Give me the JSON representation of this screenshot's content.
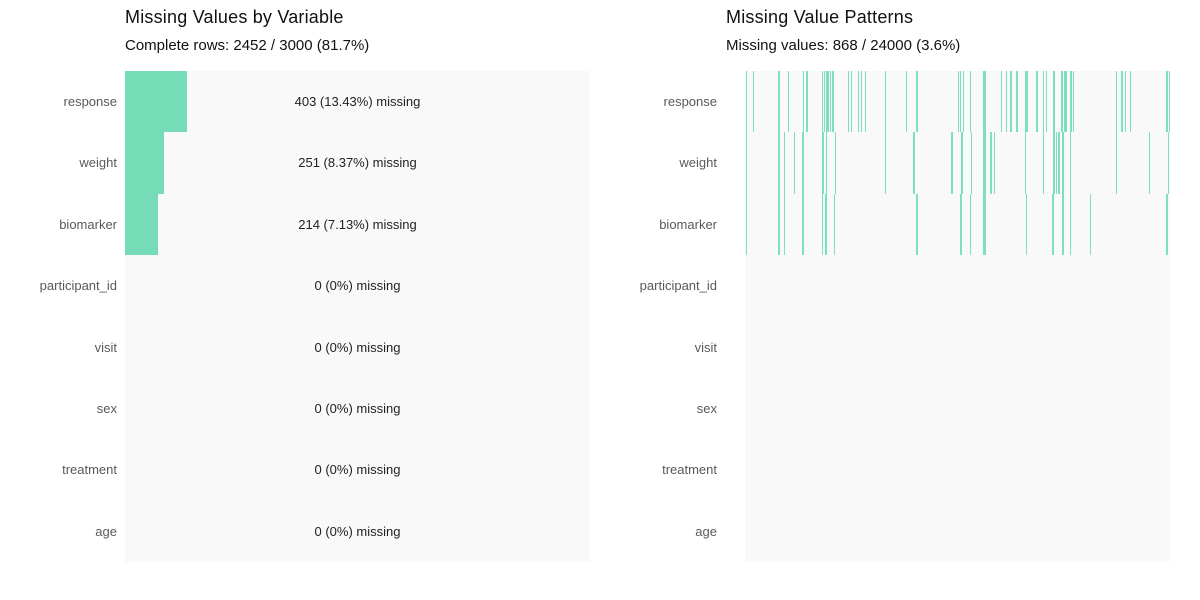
{
  "left_panel": {
    "title": "Missing Values by Variable",
    "subtitle": "Complete rows: 2452 / 3000 (81.7%)"
  },
  "right_panel": {
    "title": "Missing Value Patterns",
    "subtitle": "Missing values: 868 / 24000 (3.6%)"
  },
  "colors": {
    "accent_green": "#76dcb8",
    "pattern_line_green": "#7cdfc0",
    "panel_background": "#f9f9f9",
    "row_label_text": "#595959",
    "value_text": "#222222",
    "title_text": "#111111"
  },
  "chart_data": [
    {
      "type": "bar",
      "orientation": "horizontal",
      "title": "Missing Values by Variable",
      "subtitle": "Complete rows: 2452 / 3000 (81.7%)",
      "categories": [
        "response",
        "weight",
        "biomarker",
        "participant_id",
        "visit",
        "sex",
        "treatment",
        "age"
      ],
      "values": [
        403,
        251,
        214,
        0,
        0,
        0,
        0,
        0
      ],
      "value_labels": [
        "403 (13.43%) missing",
        "251 (8.37%) missing",
        "214 (7.13%) missing",
        "0 (0%) missing",
        "0 (0%) missing",
        "0 (0%) missing",
        "0 (0%) missing",
        "0 (0%) missing"
      ],
      "xlim": [
        0,
        3000
      ],
      "total_rows": 3000,
      "complete_rows": 2452,
      "complete_pct": 81.7,
      "grid": false,
      "legend": false
    },
    {
      "type": "heatmap",
      "title": "Missing Value Patterns",
      "subtitle": "Missing values: 868 / 24000 (3.6%)",
      "categories": [
        "response",
        "weight",
        "biomarker",
        "participant_id",
        "visit",
        "sex",
        "treatment",
        "age"
      ],
      "missing_counts": [
        403,
        251,
        214,
        0,
        0,
        0,
        0,
        0
      ],
      "total_missing": 868,
      "total_cells": 24000,
      "missing_pct": 3.6,
      "grid": false,
      "legend": false,
      "line_positions_frac": {
        "response": [
          [
            0.002,
            1.4
          ],
          [
            0.019,
            1.4
          ],
          [
            0.078,
            1.4
          ],
          [
            0.101,
            1.4
          ],
          [
            0.136,
            1.4
          ],
          [
            0.144,
            1.4
          ],
          [
            0.181,
            1.4
          ],
          [
            0.186,
            1.4
          ],
          [
            0.191,
            1.4
          ],
          [
            0.195,
            1.4
          ],
          [
            0.2,
            1.4
          ],
          [
            0.205,
            1.4
          ],
          [
            0.242,
            1.4
          ],
          [
            0.249,
            1.4
          ],
          [
            0.266,
            1.4
          ],
          [
            0.273,
            1.4
          ],
          [
            0.282,
            1.4
          ],
          [
            0.329,
            1.4
          ],
          [
            0.379,
            1.4
          ],
          [
            0.402,
            2.5
          ],
          [
            0.501,
            1.4
          ],
          [
            0.506,
            1.4
          ],
          [
            0.513,
            1.4
          ],
          [
            0.529,
            1.4
          ],
          [
            0.56,
            2.5
          ],
          [
            0.602,
            1.4
          ],
          [
            0.614,
            1.4
          ],
          [
            0.624,
            1.4
          ],
          [
            0.638,
            1.4
          ],
          [
            0.659,
            2.5
          ],
          [
            0.685,
            1.4
          ],
          [
            0.701,
            1.4
          ],
          [
            0.708,
            1.4
          ],
          [
            0.725,
            1.4
          ],
          [
            0.744,
            1.4
          ],
          [
            0.751,
            1.4
          ],
          [
            0.755,
            1.4
          ],
          [
            0.765,
            1.4
          ],
          [
            0.772,
            1.4
          ],
          [
            0.873,
            1.4
          ],
          [
            0.885,
            1.4
          ],
          [
            0.894,
            1.4
          ],
          [
            0.906,
            1.4
          ],
          [
            0.991,
            1.4
          ],
          [
            0.997,
            1.4
          ]
        ],
        "weight": [
          [
            0.002,
            1.4
          ],
          [
            0.078,
            1.4
          ],
          [
            0.091,
            1.4
          ],
          [
            0.115,
            1.4
          ],
          [
            0.135,
            1.4
          ],
          [
            0.182,
            1.4
          ],
          [
            0.19,
            1.4
          ],
          [
            0.211,
            1.4
          ],
          [
            0.329,
            1.4
          ],
          [
            0.395,
            2.5
          ],
          [
            0.485,
            1.4
          ],
          [
            0.509,
            1.4
          ],
          [
            0.532,
            1.4
          ],
          [
            0.56,
            2.5
          ],
          [
            0.577,
            1.4
          ],
          [
            0.585,
            1.4
          ],
          [
            0.659,
            1.4
          ],
          [
            0.701,
            1.4
          ],
          [
            0.725,
            1.4
          ],
          [
            0.731,
            1.4
          ],
          [
            0.737,
            1.4
          ],
          [
            0.747,
            1.4
          ],
          [
            0.764,
            1.4
          ],
          [
            0.873,
            1.4
          ],
          [
            0.95,
            1.4
          ],
          [
            0.995,
            1.4
          ]
        ],
        "biomarker": [
          [
            0.002,
            1.4
          ],
          [
            0.078,
            1.4
          ],
          [
            0.091,
            1.4
          ],
          [
            0.135,
            1.4
          ],
          [
            0.181,
            1.4
          ],
          [
            0.189,
            1.4
          ],
          [
            0.209,
            1.4
          ],
          [
            0.403,
            1.4
          ],
          [
            0.507,
            1.4
          ],
          [
            0.529,
            1.4
          ],
          [
            0.561,
            2.5
          ],
          [
            0.661,
            1.4
          ],
          [
            0.723,
            1.4
          ],
          [
            0.747,
            1.4
          ],
          [
            0.764,
            1.4
          ],
          [
            0.812,
            1.4
          ],
          [
            0.991,
            1.4
          ]
        ],
        "participant_id": [],
        "visit": [],
        "sex": [],
        "treatment": [],
        "age": []
      }
    }
  ]
}
